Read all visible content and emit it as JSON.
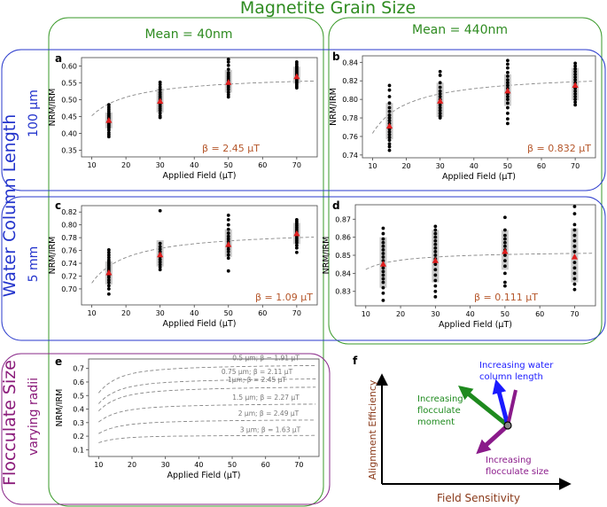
{
  "figure": {
    "title": "Magnetite Grain Size",
    "col_headers": [
      "Mean = 40nm",
      "Mean = 440nm"
    ],
    "row_group_title": "Water Column Length",
    "row_headers": [
      "100 μm",
      "5 mm"
    ],
    "bottom_group_title": "Flocculate Size",
    "bottom_subtitle": "varying radii"
  },
  "colors": {
    "title_green": "#2e8b20",
    "row_blue": "#2233cc",
    "floc_purple": "#8a1a7a",
    "beta_red": "#b5562a",
    "fit_grey": "#888888",
    "band_grey": "#c4c4c4",
    "point_black": "#000000",
    "mean_red": "#e01e1e"
  },
  "chart_data": [
    {
      "panel": "a",
      "type": "scatter",
      "xlabel": "Applied Field (μT)",
      "ylabel": "NRM/IRM",
      "xlim": [
        7,
        76
      ],
      "ylim": [
        0.33,
        0.625
      ],
      "xticks": [
        10,
        20,
        30,
        40,
        50,
        60,
        70
      ],
      "yticks": [
        0.35,
        0.4,
        0.45,
        0.5,
        0.55,
        0.6
      ],
      "ytick_labels": [
        "0.35",
        "0.40",
        "0.45",
        "0.50",
        "0.55",
        "0.60"
      ],
      "fields": [
        15,
        30,
        50,
        70
      ],
      "means": [
        0.438,
        0.495,
        0.551,
        0.568
      ],
      "band": [
        [
          0.415,
          0.462
        ],
        [
          0.462,
          0.533
        ],
        [
          0.521,
          0.588
        ],
        [
          0.548,
          0.598
        ]
      ],
      "points": [
        [
          0.39,
          0.396,
          0.402,
          0.41,
          0.416,
          0.42,
          0.424,
          0.428,
          0.432,
          0.436,
          0.44,
          0.444,
          0.448,
          0.452,
          0.456,
          0.46,
          0.466,
          0.472,
          0.478,
          0.485
        ],
        [
          0.447,
          0.452,
          0.46,
          0.468,
          0.474,
          0.48,
          0.486,
          0.49,
          0.495,
          0.5,
          0.505,
          0.51,
          0.516,
          0.522,
          0.53,
          0.537,
          0.545,
          0.552
        ],
        [
          0.508,
          0.515,
          0.522,
          0.53,
          0.536,
          0.54,
          0.545,
          0.55,
          0.554,
          0.558,
          0.563,
          0.568,
          0.574,
          0.58,
          0.59,
          0.602,
          0.612,
          0.62
        ],
        [
          0.535,
          0.54,
          0.545,
          0.55,
          0.554,
          0.558,
          0.562,
          0.566,
          0.57,
          0.573,
          0.576,
          0.58,
          0.584,
          0.588,
          0.592,
          0.596,
          0.6,
          0.606,
          0.612
        ]
      ],
      "fit": {
        "a": 0.575,
        "beta": 2.45,
        "n": 1.0
      },
      "beta_label": "β = 2.45 μT"
    },
    {
      "panel": "b",
      "type": "scatter",
      "xlabel": "Applied Field (μT)",
      "ylabel": "NRM/IRM",
      "xlim": [
        7,
        76
      ],
      "ylim": [
        0.737,
        0.847
      ],
      "xticks": [
        10,
        20,
        30,
        40,
        50,
        60,
        70
      ],
      "yticks": [
        0.74,
        0.76,
        0.78,
        0.8,
        0.82,
        0.84
      ],
      "ytick_labels": [
        "0.74",
        "0.76",
        "0.78",
        "0.80",
        "0.82",
        "0.84"
      ],
      "fields": [
        15,
        30,
        50,
        70
      ],
      "means": [
        0.771,
        0.798,
        0.809,
        0.815
      ],
      "band": [
        [
          0.757,
          0.796
        ],
        [
          0.781,
          0.818
        ],
        [
          0.793,
          0.827
        ],
        [
          0.799,
          0.834
        ]
      ],
      "points": [
        [
          0.745,
          0.749,
          0.752,
          0.756,
          0.759,
          0.762,
          0.765,
          0.768,
          0.771,
          0.774,
          0.777,
          0.78,
          0.783,
          0.787,
          0.791,
          0.796,
          0.803,
          0.81,
          0.815
        ],
        [
          0.78,
          0.782,
          0.785,
          0.788,
          0.791,
          0.794,
          0.797,
          0.8,
          0.803,
          0.806,
          0.809,
          0.813,
          0.818,
          0.826,
          0.83
        ],
        [
          0.774,
          0.779,
          0.785,
          0.791,
          0.796,
          0.8,
          0.803,
          0.806,
          0.809,
          0.812,
          0.815,
          0.818,
          0.821,
          0.825,
          0.829,
          0.834,
          0.838,
          0.842
        ],
        [
          0.794,
          0.797,
          0.8,
          0.803,
          0.806,
          0.809,
          0.812,
          0.815,
          0.818,
          0.821,
          0.824,
          0.827,
          0.83,
          0.833,
          0.836,
          0.839
        ]
      ],
      "fit": {
        "a": 0.829,
        "beta": 0.832,
        "n": 0.2
      },
      "beta_label": "β = 0.832 μT"
    },
    {
      "panel": "c",
      "type": "scatter",
      "xlabel": "Applied Field (μT)",
      "ylabel": "NRM/IRM",
      "xlim": [
        7,
        76
      ],
      "ylim": [
        0.675,
        0.83
      ],
      "xticks": [
        10,
        20,
        30,
        40,
        50,
        60,
        70
      ],
      "yticks": [
        0.7,
        0.72,
        0.74,
        0.76,
        0.78,
        0.8,
        0.82
      ],
      "ytick_labels": [
        "0.70",
        "0.72",
        "0.74",
        "0.76",
        "0.78",
        "0.80",
        "0.82"
      ],
      "fields": [
        15,
        30,
        50,
        70
      ],
      "means": [
        0.725,
        0.753,
        0.769,
        0.786
      ],
      "band": [
        [
          0.707,
          0.743
        ],
        [
          0.735,
          0.776
        ],
        [
          0.75,
          0.793
        ],
        [
          0.77,
          0.803
        ]
      ],
      "points": [
        [
          0.692,
          0.7,
          0.705,
          0.71,
          0.714,
          0.718,
          0.721,
          0.724,
          0.727,
          0.73,
          0.733,
          0.736,
          0.739,
          0.742,
          0.745,
          0.749,
          0.753,
          0.757,
          0.761
        ],
        [
          0.73,
          0.734,
          0.738,
          0.742,
          0.746,
          0.75,
          0.754,
          0.758,
          0.762,
          0.766,
          0.771,
          0.822
        ],
        [
          0.728,
          0.748,
          0.753,
          0.758,
          0.762,
          0.766,
          0.77,
          0.774,
          0.778,
          0.782,
          0.787,
          0.793,
          0.8,
          0.808,
          0.815
        ],
        [
          0.757,
          0.764,
          0.768,
          0.772,
          0.775,
          0.778,
          0.781,
          0.784,
          0.787,
          0.79,
          0.793,
          0.796,
          0.799,
          0.802,
          0.805,
          0.808
        ]
      ],
      "fit": {
        "a": 0.793,
        "beta": 1.09,
        "n": 0.6
      },
      "beta_label": "β = 1.09 μT"
    },
    {
      "panel": "d",
      "type": "scatter",
      "xlabel": "Applied Field (μT)",
      "ylabel": "NRM/IRM",
      "xlim": [
        7,
        76
      ],
      "ylim": [
        0.822,
        0.878
      ],
      "xticks": [
        10,
        20,
        30,
        40,
        50,
        60,
        70
      ],
      "yticks": [
        0.83,
        0.84,
        0.85,
        0.86,
        0.87
      ],
      "ytick_labels": [
        "0.83",
        "0.84",
        "0.85",
        "0.86",
        "0.87"
      ],
      "fields": [
        15,
        30,
        50,
        70
      ],
      "means": [
        0.845,
        0.847,
        0.852,
        0.849
      ],
      "band": [
        [
          0.832,
          0.86
        ],
        [
          0.835,
          0.864
        ],
        [
          0.842,
          0.864
        ],
        [
          0.835,
          0.865
        ]
      ],
      "points": [
        [
          0.825,
          0.829,
          0.832,
          0.835,
          0.837,
          0.839,
          0.841,
          0.843,
          0.845,
          0.847,
          0.849,
          0.851,
          0.853,
          0.855,
          0.857,
          0.859,
          0.862,
          0.865
        ],
        [
          0.827,
          0.83,
          0.833,
          0.836,
          0.839,
          0.842,
          0.845,
          0.848,
          0.85,
          0.852,
          0.854,
          0.856,
          0.858,
          0.86,
          0.862,
          0.864,
          0.866
        ],
        [
          0.833,
          0.835,
          0.84,
          0.844,
          0.847,
          0.85,
          0.853,
          0.855,
          0.857,
          0.859,
          0.861,
          0.864,
          0.871
        ],
        [
          0.831,
          0.834,
          0.837,
          0.84,
          0.843,
          0.846,
          0.849,
          0.852,
          0.855,
          0.858,
          0.861,
          0.864,
          0.867,
          0.873,
          0.877
        ]
      ],
      "fit": {
        "a": 0.8525,
        "beta": 0.111,
        "n": 0.1
      },
      "beta_label": "β = 0.111 μT"
    },
    {
      "panel": "e",
      "type": "line",
      "xlabel": "Applied Field (μT)",
      "ylabel": "NRM/IRM",
      "xlim": [
        7,
        76
      ],
      "ylim": [
        0.05,
        0.77
      ],
      "xticks": [
        10,
        20,
        30,
        40,
        50,
        60,
        70
      ],
      "yticks": [
        0.1,
        0.2,
        0.3,
        0.4,
        0.5,
        0.6,
        0.7
      ],
      "ytick_labels": [
        "0.1",
        "0.2",
        "0.3",
        "0.4",
        "0.5",
        "0.6",
        "0.7"
      ],
      "series": [
        {
          "label": "0.5 μm; β = 1.91 μT",
          "a": 0.74,
          "beta": 1.91,
          "n": 1.7
        },
        {
          "label": "0.75 μm; β = 2.11 μT",
          "a": 0.64,
          "beta": 2.11,
          "n": 1.7
        },
        {
          "label": "1μm; β = 2.45 μT",
          "a": 0.58,
          "beta": 2.45,
          "n": 1.7
        },
        {
          "label": "1.5 μm; β = 2.27 μT",
          "a": 0.45,
          "beta": 2.27,
          "n": 1.7
        },
        {
          "label": "2 μm; β = 2.49 μT",
          "a": 0.33,
          "beta": 2.49,
          "n": 1.7
        },
        {
          "label": "3 μm; β = 1.63 μT",
          "a": 0.21,
          "beta": 1.63,
          "n": 1.7
        }
      ]
    },
    {
      "panel": "f",
      "type": "diagram",
      "xlabel": "Field Sensitivity",
      "ylabel": "Alignment Efficiency",
      "arrows": [
        {
          "label": "Increasing water column length",
          "color": "#1a1aff"
        },
        {
          "label": "Increasing flocculate moment",
          "color": "#1e8a1e"
        },
        {
          "label": "Increasing flocculate size",
          "color": "#8a1a8a"
        }
      ]
    }
  ]
}
